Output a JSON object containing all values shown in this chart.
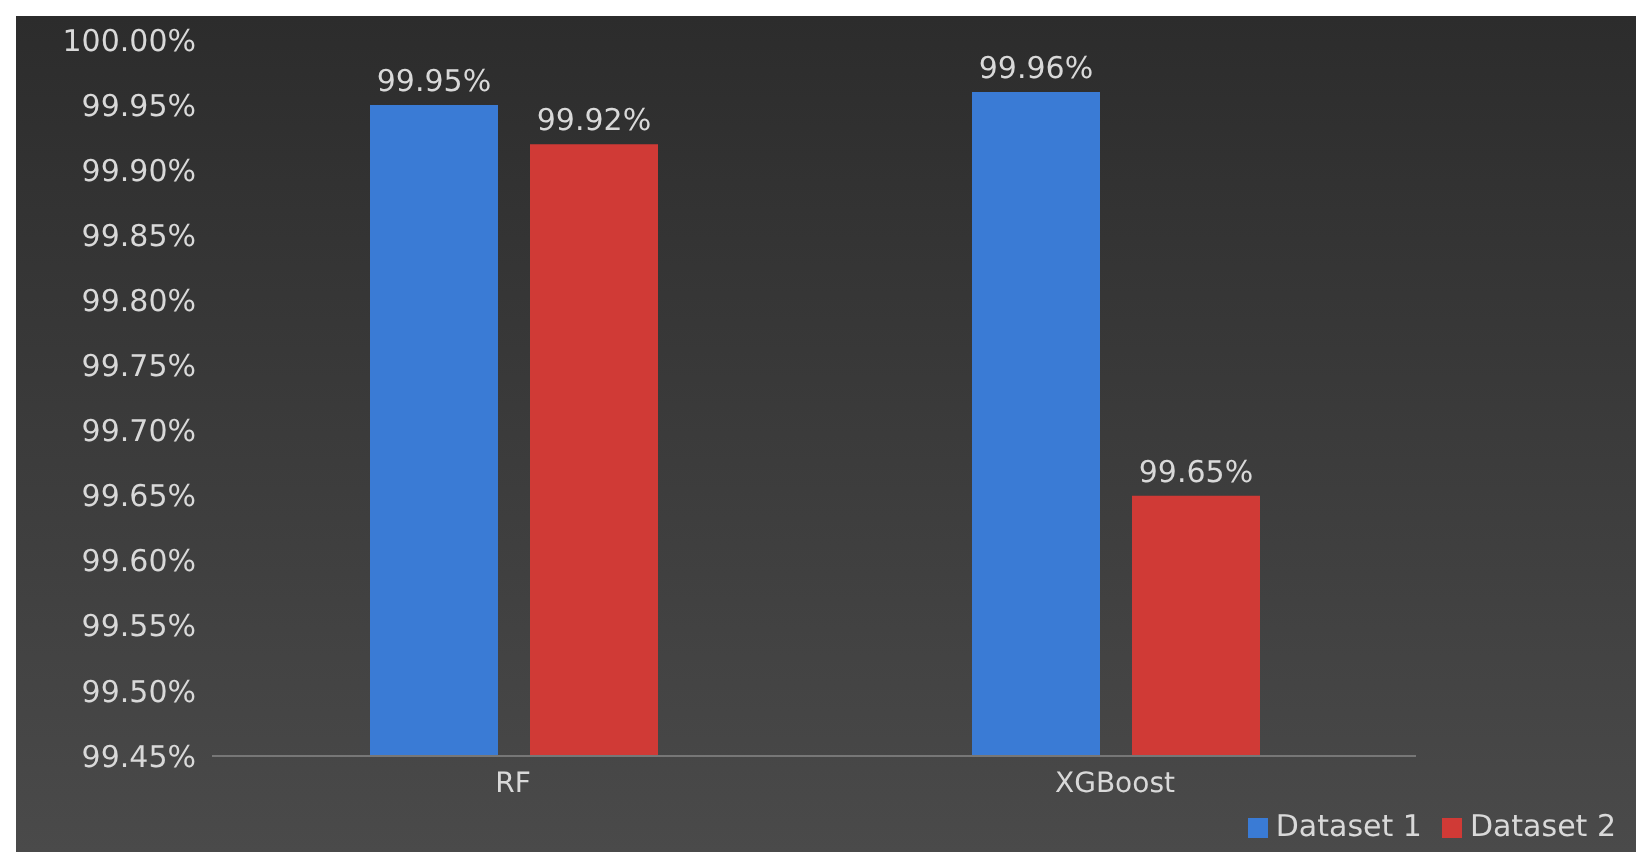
{
  "chart_data": {
    "type": "bar",
    "categories": [
      "RF",
      "XGBoost"
    ],
    "series": [
      {
        "name": "Dataset 1",
        "color": "#3a7bd5",
        "values": [
          99.95,
          99.96
        ],
        "value_labels": [
          "99.95%",
          "99.96%"
        ]
      },
      {
        "name": "Dataset 2",
        "color": "#d03a36",
        "values": [
          99.92,
          99.65
        ],
        "value_labels": [
          "99.92%",
          "99.65%"
        ]
      }
    ],
    "ylim": [
      99.45,
      100.0
    ],
    "yticks": [
      {
        "value": 99.45,
        "label": "99.45%"
      },
      {
        "value": 99.5,
        "label": "99.50%"
      },
      {
        "value": 99.55,
        "label": "99.55%"
      },
      {
        "value": 99.6,
        "label": "99.60%"
      },
      {
        "value": 99.65,
        "label": "99.65%"
      },
      {
        "value": 99.7,
        "label": "99.70%"
      },
      {
        "value": 99.75,
        "label": "99.75%"
      },
      {
        "value": 99.8,
        "label": "99.80%"
      },
      {
        "value": 99.85,
        "label": "99.85%"
      },
      {
        "value": 99.9,
        "label": "99.90%"
      },
      {
        "value": 99.95,
        "label": "99.95%"
      },
      {
        "value": 100.0,
        "label": "100.00%"
      }
    ],
    "grid": false,
    "legend": "bottom right"
  }
}
